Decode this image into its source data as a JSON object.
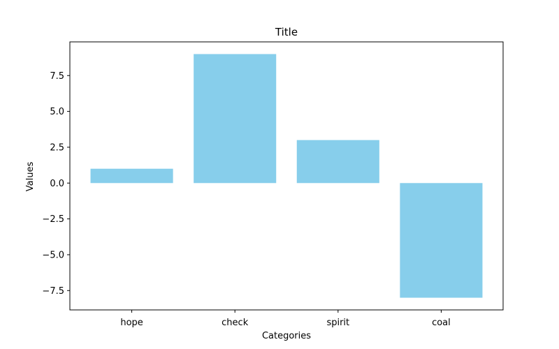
{
  "chart_data": {
    "type": "bar",
    "title": "Title",
    "xlabel": "Categories",
    "ylabel": "Values",
    "categories": [
      "hope",
      "check",
      "spirit",
      "coal"
    ],
    "values": [
      1,
      9,
      3,
      -8
    ],
    "ylim": [
      -8.85,
      9.85
    ],
    "yticks": [
      -7.5,
      -5.0,
      -2.5,
      0.0,
      2.5,
      5.0,
      7.5
    ],
    "ytick_labels": [
      "−7.5",
      "−5.0",
      "−2.5",
      "0.0",
      "2.5",
      "5.0",
      "7.5"
    ],
    "bar_color": "#87ceeb",
    "grid": false,
    "legend": "none"
  }
}
